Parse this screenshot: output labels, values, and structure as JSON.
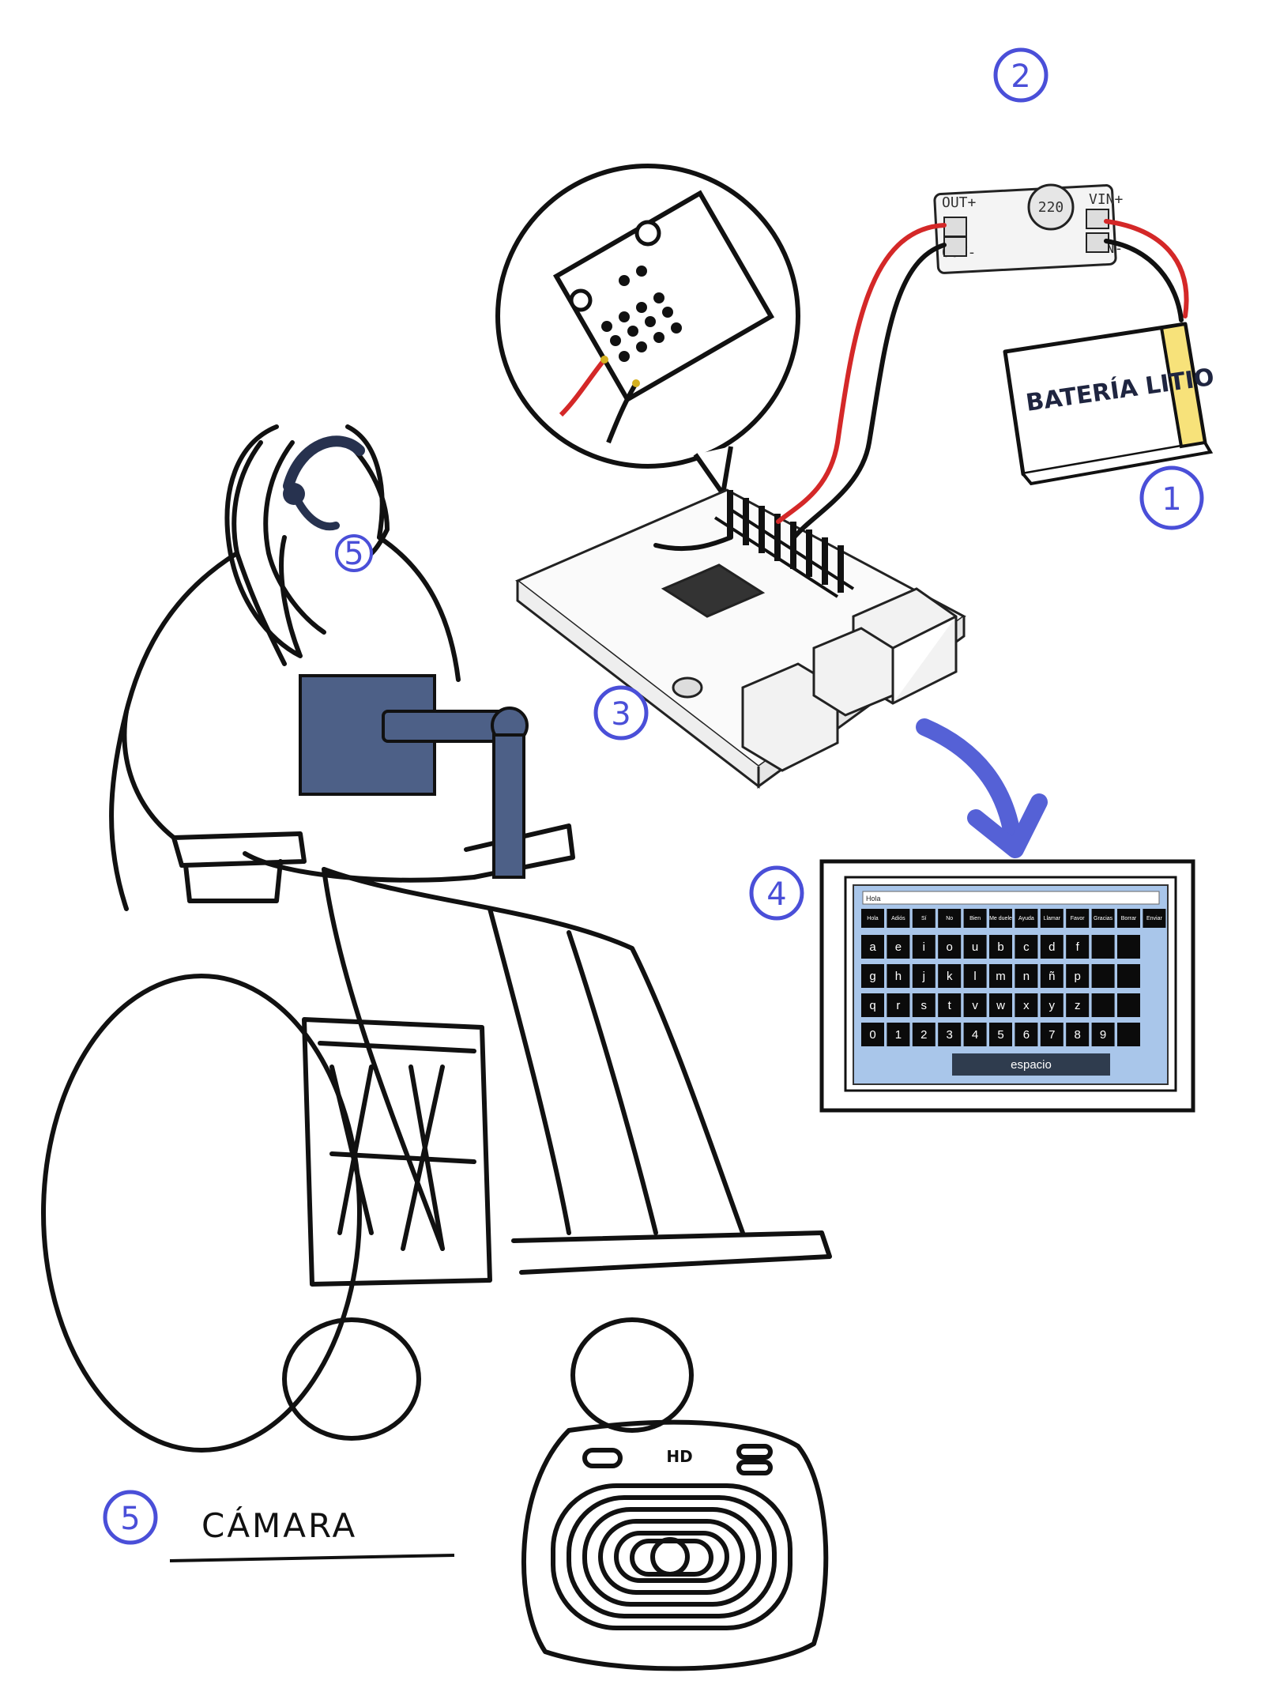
{
  "markers": [
    {
      "id": "1",
      "label": "1"
    },
    {
      "id": "2",
      "label": "2"
    },
    {
      "id": "3",
      "label": "3"
    },
    {
      "id": "4",
      "label": "4"
    },
    {
      "id": "5",
      "label": "5"
    }
  ],
  "battery": {
    "label": "BATERÍA LITIO",
    "accent_color": "#f7e27a"
  },
  "boost_module": {
    "capacitor_label": "220",
    "pin_vin_plus": "VIN+",
    "pin_vin_minus": "VIN-",
    "pin_out_plus": "OUT+",
    "pin_out_minus": "OUT-"
  },
  "legend": {
    "number": "5",
    "label": "CÁMARA"
  },
  "camera": {
    "badge": "HD"
  },
  "tablet": {
    "text_field_value": "Hola",
    "word_row": [
      "Hola",
      "Adiós",
      "Sí",
      "No",
      "Bien",
      "Me duele",
      "Ayuda",
      "Llamar",
      "Favor",
      "Gracias",
      "Borrar",
      "Enviar"
    ],
    "letter_rows": [
      [
        "a",
        "e",
        "i",
        "o",
        "u",
        "b",
        "c",
        "d",
        "f"
      ],
      [
        "g",
        "h",
        "j",
        "k",
        "l",
        "m",
        "n",
        "ñ",
        "p"
      ],
      [
        "q",
        "r",
        "s",
        "t",
        "v",
        "w",
        "x",
        "y",
        "z"
      ],
      [
        "0",
        "1",
        "2",
        "3",
        "4",
        "5",
        "6",
        "7",
        "8",
        "9"
      ]
    ],
    "space_label": "espacio",
    "panel_color": "#a9c6ea",
    "key_color": "#0b0b0b"
  },
  "colors": {
    "marker": "#4a4fd8",
    "arrow": "#5561d6",
    "chest_mount": "#4d6087",
    "headset": "#27324f",
    "wire_red": "#d42828",
    "wire_black": "#111111"
  }
}
